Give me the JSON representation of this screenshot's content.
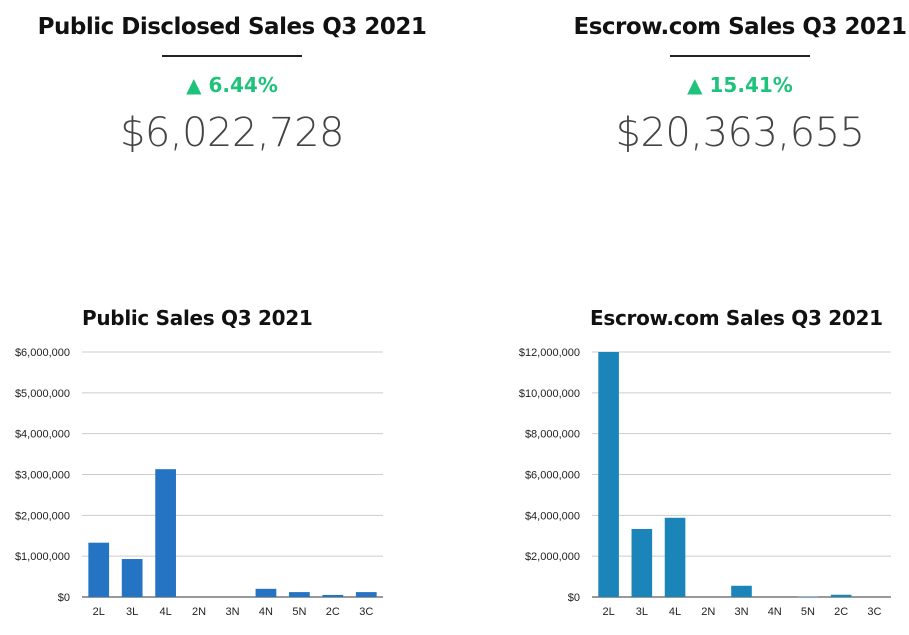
{
  "kpis": [
    {
      "title": "Public Disclosed Sales Q3 2021",
      "delta_arrow": "▲",
      "delta": "6.44%",
      "value": "$6,022,728"
    },
    {
      "title": "Escrow.com Sales Q3 2021",
      "delta_arrow": "▲",
      "delta": "15.41%",
      "value": "$20,363,655"
    }
  ],
  "colors": {
    "up": "#1fc27a",
    "bar_left": "#2574c4",
    "bar_right": "#1b84b8",
    "grid": "#cccccc"
  },
  "chart_data": [
    {
      "type": "bar",
      "title": "Public Sales Q3 2021",
      "categories": [
        "2L",
        "3L",
        "4L",
        "2N",
        "3N",
        "4N",
        "5N",
        "2C",
        "3C"
      ],
      "values": [
        1330000,
        930000,
        3130000,
        0,
        0,
        200000,
        120000,
        50000,
        120000
      ],
      "yticks": [
        "$0",
        "$1,000,000",
        "$2,000,000",
        "$3,000,000",
        "$4,000,000",
        "$5,000,000",
        "$6,000,000"
      ],
      "ylim": [
        0,
        6000000
      ],
      "xlabel": "",
      "ylabel": "",
      "grid": true
    },
    {
      "type": "bar",
      "title": "Escrow.com Sales Q3 2021",
      "categories": [
        "2L",
        "3L",
        "4L",
        "2N",
        "3N",
        "4N",
        "5N",
        "2C",
        "3C"
      ],
      "values": [
        12000000,
        3330000,
        3880000,
        0,
        550000,
        0,
        20000,
        110000,
        0
      ],
      "yticks": [
        "$0",
        "$2,000,000",
        "$4,000,000",
        "$6,000,000",
        "$8,000,000",
        "$10,000,000",
        "$12,000,000"
      ],
      "ylim": [
        0,
        12000000
      ],
      "xlabel": "",
      "ylabel": "",
      "grid": true
    }
  ]
}
